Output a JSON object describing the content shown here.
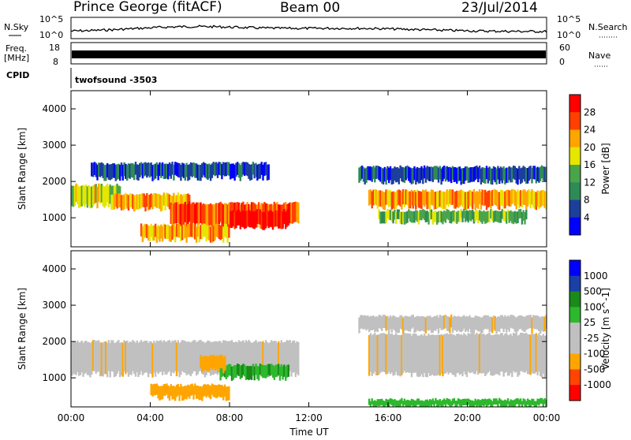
{
  "header": {
    "station": "Prince George (fitACF)",
    "beam": "Beam 00",
    "date": "23/Jul/2014"
  },
  "panels": {
    "nsky_label": "N.Sky",
    "nsky_ticks": [
      "10^5",
      "10^0"
    ],
    "nsearch_label": "N.Search",
    "freq_label": "Freq.",
    "freq_unit": "[MHz]",
    "freq_ticks": [
      "18",
      "8"
    ],
    "nave_label": "Nave",
    "nave_ticks": [
      "60",
      "0"
    ],
    "cpid_label": "CPID",
    "cpid_value": "twofsound -3503"
  },
  "chart_data": [
    {
      "type": "heatmap",
      "name": "power",
      "ylabel": "Slant Range [km]",
      "yticks": [
        "4000",
        "3000",
        "2000",
        "1000"
      ],
      "ylim": [
        200,
        4500
      ],
      "colorbar_label": "Power [dB]",
      "colorbar_ticks": [
        "28",
        "24",
        "20",
        "16",
        "12",
        "8",
        "4"
      ],
      "colorscale": [
        "#0000ff",
        "#1d3f9c",
        "#2e8b57",
        "#4aa44a",
        "#e6e600",
        "#ffa500",
        "#ff4000",
        "#ff0000"
      ],
      "bands": [
        {
          "t0": 0.0,
          "t1": 2.5,
          "r0": 1350,
          "r1": 1900,
          "level": 20
        },
        {
          "t0": 2.0,
          "t1": 6.0,
          "r0": 1250,
          "r1": 1650,
          "level": 22
        },
        {
          "t0": 5.0,
          "t1": 11.5,
          "r0": 800,
          "r1": 1400,
          "level": 26
        },
        {
          "t0": 8.0,
          "t1": 11.0,
          "r0": 750,
          "r1": 1200,
          "level": 30
        },
        {
          "t0": 3.5,
          "t1": 8.0,
          "r0": 400,
          "r1": 800,
          "level": 24
        },
        {
          "t0": 15.0,
          "t1": 24.0,
          "r0": 1300,
          "r1": 1750,
          "level": 22
        },
        {
          "t0": 15.5,
          "t1": 23.0,
          "r0": 900,
          "r1": 1200,
          "level": 14
        },
        {
          "t0": 1.0,
          "t1": 10.0,
          "r0": 2100,
          "r1": 2500,
          "level": 8
        },
        {
          "t0": 14.5,
          "t1": 24.0,
          "r0": 2000,
          "r1": 2400,
          "level": 6
        }
      ]
    },
    {
      "type": "heatmap",
      "name": "velocity",
      "ylabel": "Slant Range [km]",
      "yticks": [
        "4000",
        "3000",
        "2000",
        "1000"
      ],
      "ylim": [
        200,
        4500
      ],
      "colorbar_label": "Velocity [m s^-1]",
      "colorbar_ticks": [
        "1000",
        "500",
        "100",
        "25",
        "-25",
        "-100",
        "-500",
        "-1000"
      ],
      "colorscale": [
        "#ff0000",
        "#ff4500",
        "#ffa500",
        "#c0c0c0",
        "#c0c0c0",
        "#2db82d",
        "#1a8a1a",
        "#1b3fa8",
        "#0000ff"
      ],
      "bands": [
        {
          "t0": 0.0,
          "t1": 11.5,
          "r0": 1100,
          "r1": 2000,
          "vel": 0
        },
        {
          "t0": 7.5,
          "t1": 11.0,
          "r0": 1000,
          "r1": 1350,
          "vel": 200
        },
        {
          "t0": 6.5,
          "t1": 7.8,
          "r0": 1200,
          "r1": 1600,
          "vel": -200
        },
        {
          "t0": 4.0,
          "t1": 8.0,
          "r0": 450,
          "r1": 800,
          "vel": -150
        },
        {
          "t0": 15.0,
          "t1": 24.0,
          "r0": 1100,
          "r1": 2200,
          "vel": 0
        },
        {
          "t0": 14.5,
          "t1": 24.0,
          "r0": 2300,
          "r1": 2700,
          "vel": 0
        },
        {
          "t0": 15.0,
          "t1": 24.0,
          "r0": 200,
          "r1": 400,
          "vel": 60
        }
      ]
    }
  ],
  "xaxis": {
    "label": "Time UT",
    "ticks": [
      "00:00",
      "04:00",
      "08:00",
      "12:00",
      "16:00",
      "20:00",
      "00:00"
    ],
    "xlim": [
      0,
      24
    ]
  }
}
